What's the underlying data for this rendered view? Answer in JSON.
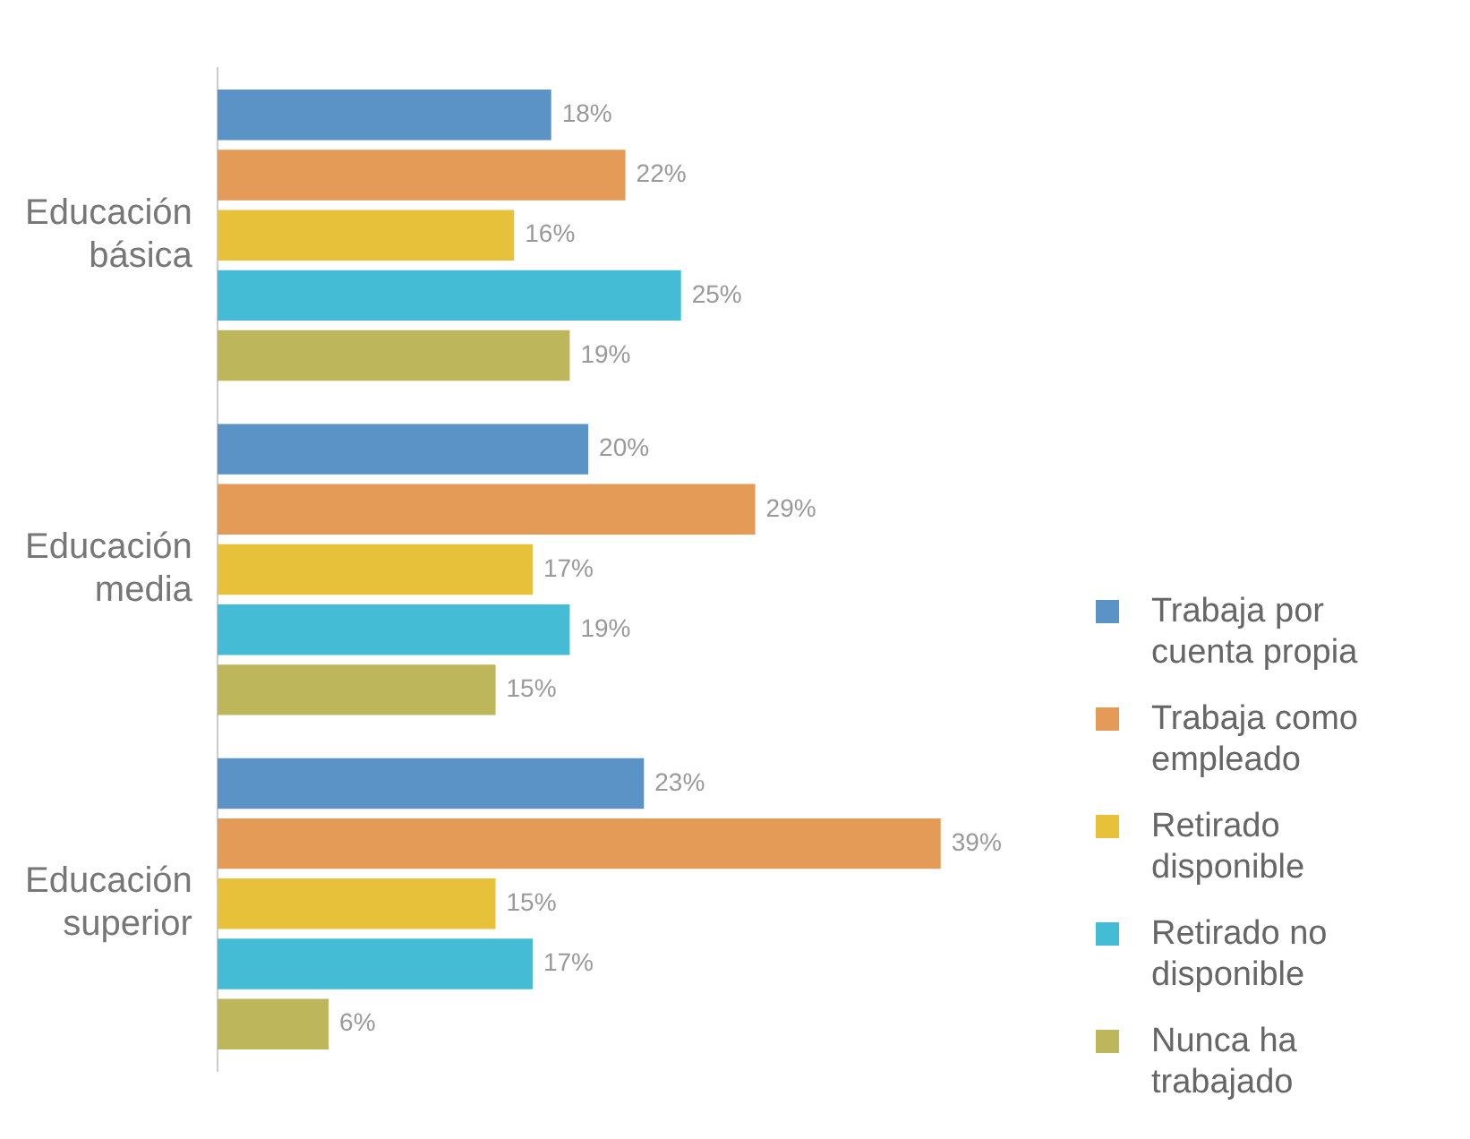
{
  "chart_data": {
    "type": "bar",
    "orientation": "horizontal",
    "categories": [
      "Educación básica",
      "Educación media",
      "Educación superior"
    ],
    "legend": "right",
    "tick_labels": "y",
    "series": [
      {
        "name": "Trabaja por cuenta propia",
        "color": "#5b93c7",
        "values": [
          18,
          20,
          23
        ],
        "value_labels": [
          "18%",
          "20%",
          "23%"
        ]
      },
      {
        "name": "Trabaja como empleado",
        "color": "#e39b57",
        "values": [
          22,
          29,
          39
        ],
        "value_labels": [
          "22%",
          "29%",
          "39%"
        ]
      },
      {
        "name": "Retirado disponible",
        "color": "#e8c13a",
        "values": [
          16,
          17,
          15
        ],
        "value_labels": [
          "16%",
          "17%",
          "15%"
        ]
      },
      {
        "name": "Retirado no disponible",
        "color": "#45bcd6",
        "values": [
          25,
          19,
          17
        ],
        "value_labels": [
          "25%",
          "19%",
          "17%"
        ]
      },
      {
        "name": "Nunca ha trabajado",
        "color": "#bdb65b",
        "values": [
          19,
          15,
          6
        ],
        "value_labels": [
          "19%",
          "15%",
          "6%"
        ]
      }
    ]
  }
}
